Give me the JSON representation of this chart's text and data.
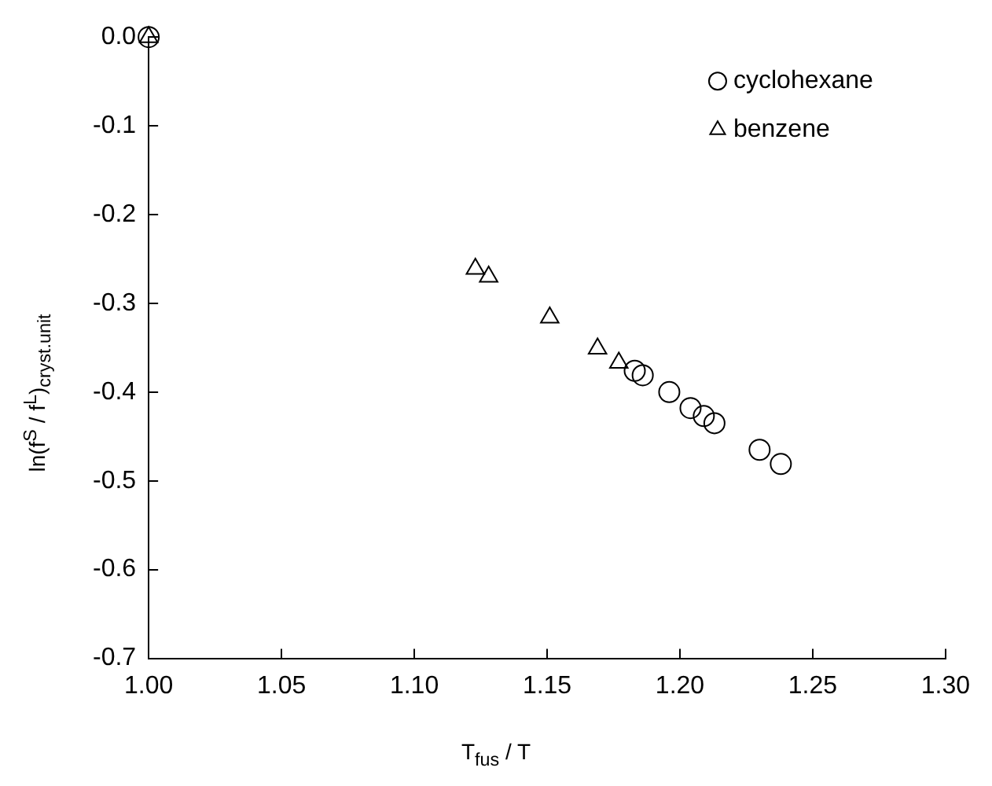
{
  "chart_data": {
    "type": "scatter",
    "xlabel": "T$_{fus}$ / T",
    "ylabel": "ln(f$^{S}$ / f$^{L}$)$_{cryst.unit}$",
    "xlim": [
      1.0,
      1.3
    ],
    "xticks": [
      {
        "value": 1.0,
        "label": "1.00"
      },
      {
        "value": 1.05,
        "label": "1.05"
      },
      {
        "value": 1.1,
        "label": "1.10"
      },
      {
        "value": 1.15,
        "label": "1.15"
      },
      {
        "value": 1.2,
        "label": "1.20"
      },
      {
        "value": 1.25,
        "label": "1.25"
      },
      {
        "value": 1.3,
        "label": "1.30"
      }
    ],
    "ylim": [
      -0.7,
      0.0
    ],
    "yticks": [
      {
        "value": -0.7,
        "label": "-0.7"
      },
      {
        "value": -0.6,
        "label": "-0.6"
      },
      {
        "value": -0.5,
        "label": "-0.5"
      },
      {
        "value": -0.4,
        "label": "-0.4"
      },
      {
        "value": -0.3,
        "label": "-0.3"
      },
      {
        "value": -0.2,
        "label": "-0.2"
      },
      {
        "value": -0.1,
        "label": "-0.1"
      },
      {
        "value": 0.0,
        "label": "0.0"
      }
    ],
    "grid": false,
    "legend": "top right",
    "series": [
      {
        "name": "cyclohexane",
        "color": "#000000",
        "marker": "circle",
        "x": [
          1.0,
          1.183,
          1.186,
          1.196,
          1.204,
          1.209,
          1.213,
          1.23,
          1.238
        ],
        "values": [
          0.0,
          -0.376,
          -0.381,
          -0.4,
          -0.418,
          -0.427,
          -0.435,
          -0.465,
          -0.481
        ]
      },
      {
        "name": "benzene",
        "color": "#000000",
        "marker": "triangle",
        "x": [
          1.0,
          1.123,
          1.128,
          1.151,
          1.169,
          1.177
        ],
        "values": [
          0.0,
          -0.261,
          -0.27,
          -0.316,
          -0.351,
          -0.367
        ]
      }
    ]
  }
}
